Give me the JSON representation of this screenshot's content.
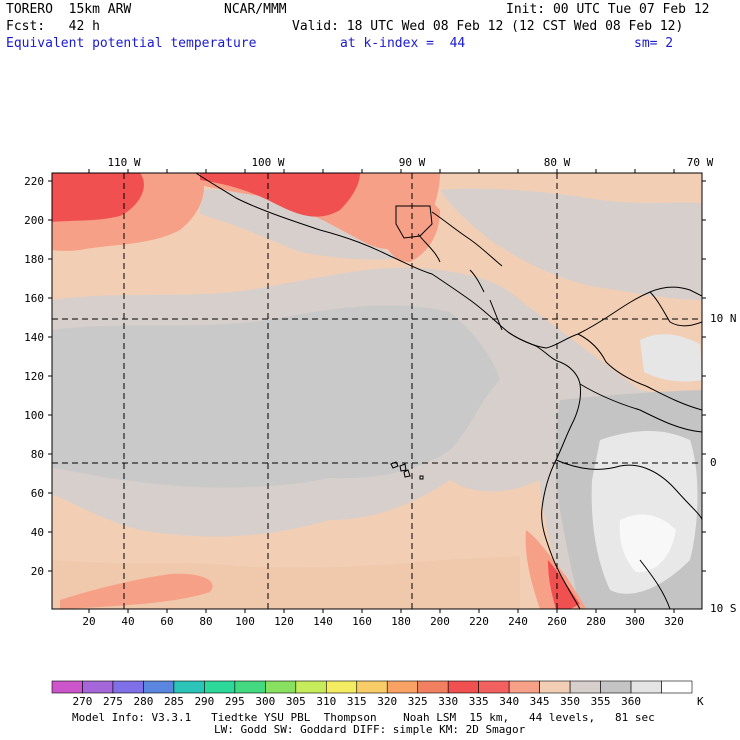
{
  "header": {
    "model": "TORERO  15km ARW",
    "center": "NCAR/MMM",
    "init": "Init: 00 UTC Tue 07 Feb 12",
    "fcst": "Fcst:   42 h",
    "valid": "Valid: 18 UTC Wed 08 Feb 12 (12 CST Wed 08 Feb 12)",
    "field": "Equivalent potential temperature",
    "level": "at k-index =  44",
    "smooth": "sm= 2"
  },
  "top_longitude_labels": [
    "110 W",
    "100 W",
    "90 W",
    "80 W",
    "70 W"
  ],
  "right_latitude_labels": [
    "10 N",
    "0",
    "10 S"
  ],
  "left_grid_labels": [
    "220",
    "200",
    "180",
    "160",
    "140",
    "120",
    "100",
    "80",
    "60",
    "40",
    "20"
  ],
  "bottom_grid_labels": [
    "20",
    "40",
    "60",
    "80",
    "100",
    "120",
    "140",
    "160",
    "180",
    "200",
    "220",
    "240",
    "260",
    "280",
    "300",
    "320"
  ],
  "colorbar": {
    "unit": "K",
    "labels": [
      "270",
      "275",
      "280",
      "285",
      "290",
      "295",
      "300",
      "305",
      "310",
      "315",
      "320",
      "325",
      "330",
      "335",
      "340",
      "345",
      "350",
      "355",
      "360"
    ],
    "colors": [
      "#cc55cc",
      "#a466d8",
      "#8070e8",
      "#5a86e0",
      "#2cc4b8",
      "#2cd89a",
      "#44d880",
      "#88e060",
      "#c6ec5c",
      "#f4ec60",
      "#f8cc66",
      "#f8a266",
      "#f08060",
      "#f05050",
      "#f26060",
      "#f6a088",
      "#f2cfb4",
      "#d7cfcb",
      "#c4c4c4",
      "#e4e4e4",
      "#ffffff"
    ]
  },
  "footer": {
    "line1": "Model Info: V3.3.1   Tiedtke YSU PBL  Thompson    Noah LSM  15 km,   44 levels,   81 sec",
    "line2": "LW: Godd SW: Goddard DIFF: simple KM: 2D Smagor"
  }
}
